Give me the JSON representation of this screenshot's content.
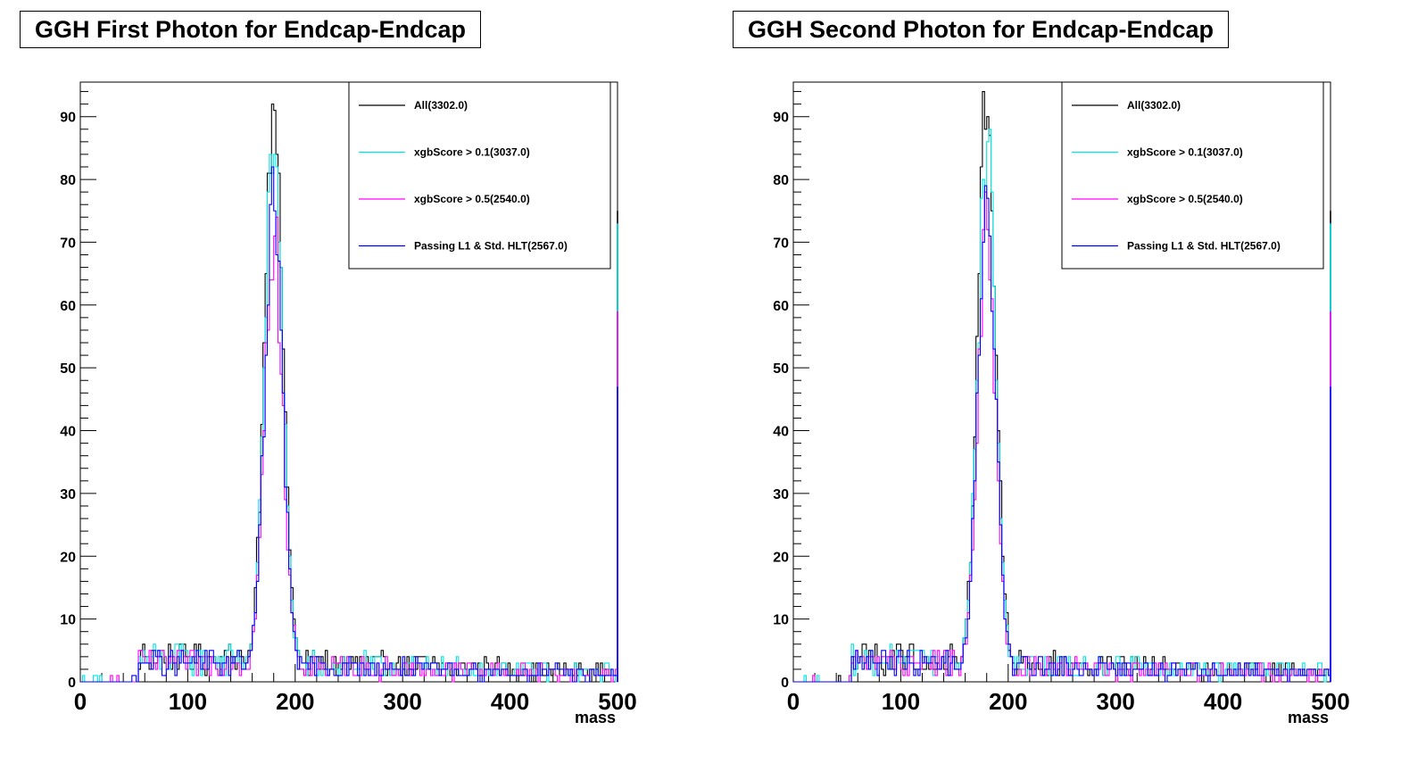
{
  "chart_data": [
    {
      "type": "line",
      "title": "GGH First Photon for Endcap-Endcap",
      "xlabel": "mass",
      "ylabel": "",
      "xlim": [
        0,
        500
      ],
      "ylim": [
        0,
        95.5
      ],
      "xticks": [
        "0",
        "100",
        "200",
        "300",
        "400",
        "500"
      ],
      "yticks": [
        "0",
        "10",
        "20",
        "30",
        "40",
        "50",
        "60",
        "70",
        "80",
        "90"
      ],
      "legend": "top-right",
      "grid": false,
      "bin_width": 2,
      "peak_center": 180,
      "series": [
        {
          "name": "All(3302.0)",
          "color": "#000000",
          "peak": 91,
          "overflow": 75,
          "tail_level": 3.2
        },
        {
          "name": "xgbScore > 0.1(3037.0)",
          "color": "#00e5e5",
          "peak": 84,
          "overflow": 73,
          "tail_level": 3.0
        },
        {
          "name": "xgbScore > 0.5(2540.0)",
          "color": "#ff00ff",
          "peak": 70,
          "overflow": 59,
          "tail_level": 2.6
        },
        {
          "name": "Passing L1 & Std. HLT(2567.0)",
          "color": "#0000ff",
          "peak": 74,
          "overflow": 47,
          "tail_level": 2.6
        }
      ]
    },
    {
      "type": "line",
      "title": "GGH Second Photon for Endcap-Endcap",
      "xlabel": "mass",
      "ylabel": "",
      "xlim": [
        0,
        500
      ],
      "ylim": [
        0,
        95.5
      ],
      "xticks": [
        "0",
        "100",
        "200",
        "300",
        "400",
        "500"
      ],
      "yticks": [
        "0",
        "10",
        "20",
        "30",
        "40",
        "50",
        "60",
        "70",
        "80",
        "90"
      ],
      "legend": "top-right",
      "grid": false,
      "bin_width": 2,
      "peak_center": 180,
      "series": [
        {
          "name": "All(3302.0)",
          "color": "#000000",
          "peak": 91,
          "overflow": 75,
          "tail_level": 3.2
        },
        {
          "name": "xgbScore > 0.1(3037.0)",
          "color": "#00e5e5",
          "peak": 84,
          "overflow": 73,
          "tail_level": 3.0
        },
        {
          "name": "xgbScore > 0.5(2540.0)",
          "color": "#ff00ff",
          "peak": 70,
          "overflow": 59,
          "tail_level": 2.6
        },
        {
          "name": "Passing L1 & Std. HLT(2567.0)",
          "color": "#0000ff",
          "peak": 74,
          "overflow": 47,
          "tail_level": 2.6
        }
      ]
    }
  ]
}
